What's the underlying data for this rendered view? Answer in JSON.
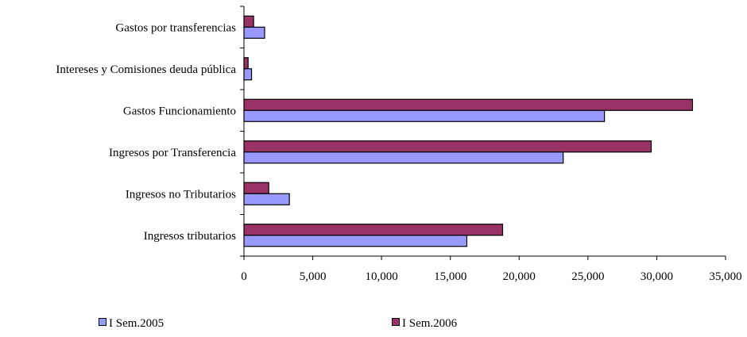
{
  "chart_data": {
    "type": "bar",
    "orientation": "horizontal",
    "categories": [
      "Gastos por transferencias",
      "Intereses y Comisiones deuda pública",
      "Gastos Funcionamiento",
      "Ingresos por Transferencia",
      "Ingresos no Tributarios",
      "Ingresos tributarios"
    ],
    "series": [
      {
        "name": "I Sem.2006",
        "color": "#993366",
        "values": [
          700,
          300,
          32600,
          29600,
          1800,
          18800
        ]
      },
      {
        "name": "I Sem.2005",
        "color": "#9999ff",
        "values": [
          1500,
          550,
          26200,
          23200,
          3300,
          16200
        ]
      }
    ],
    "xlim": [
      0,
      35000
    ],
    "xticks": [
      0,
      5000,
      10000,
      15000,
      20000,
      25000,
      30000,
      35000
    ],
    "xtick_labels": [
      "0",
      "5,000",
      "10,000",
      "15,000",
      "20,000",
      "25,000",
      "30,000",
      "35,000"
    ],
    "grid": false,
    "legend_position": "bottom"
  },
  "legend": [
    {
      "label": "I Sem.2005",
      "color": "#9999ff"
    },
    {
      "label": "I Sem.2006",
      "color": "#993366"
    }
  ]
}
